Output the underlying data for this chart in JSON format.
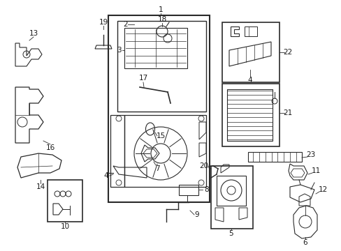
{
  "bg_color": "#ffffff",
  "line_color": "#2a2a2a",
  "text_color": "#1a1a1a",
  "fig_width": 4.89,
  "fig_height": 3.6,
  "dpi": 100
}
